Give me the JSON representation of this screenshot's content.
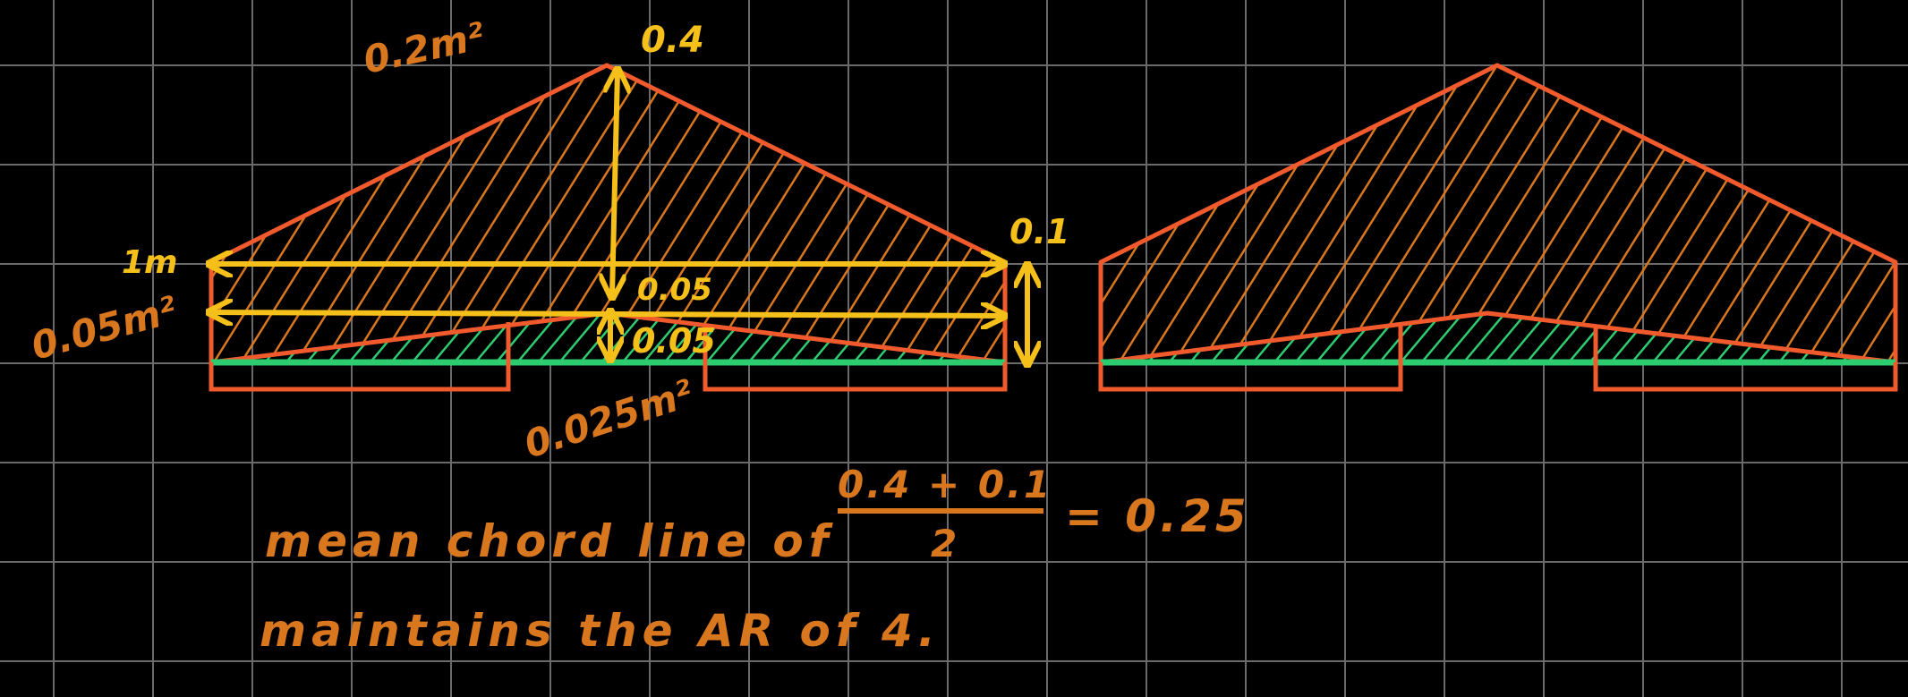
{
  "colors": {
    "background": "#000000",
    "grid": "#6a6a6a",
    "outline": "#f05a2c",
    "hatch_wing": "#d9771f",
    "hatch_tail": "#2ecc71",
    "tail_line": "#2ecc71",
    "dimension": "#f6c01a",
    "note": "#d9771f"
  },
  "labels": {
    "area_top": "0.2m²",
    "height_top": "0.4",
    "span": "1m",
    "area_left": "0.05m²",
    "dim_mid_upper": "0.05",
    "dim_mid_lower": "0.05",
    "height_right": "0.1",
    "area_bottom": "0.025m²"
  },
  "notes": {
    "line1_text": "mean chord line of",
    "fraction_numerator": "0.4 + 0.1",
    "fraction_denominator": "2",
    "fraction_result": "= 0.25",
    "line2_text": "maintains the AR of 4."
  }
}
